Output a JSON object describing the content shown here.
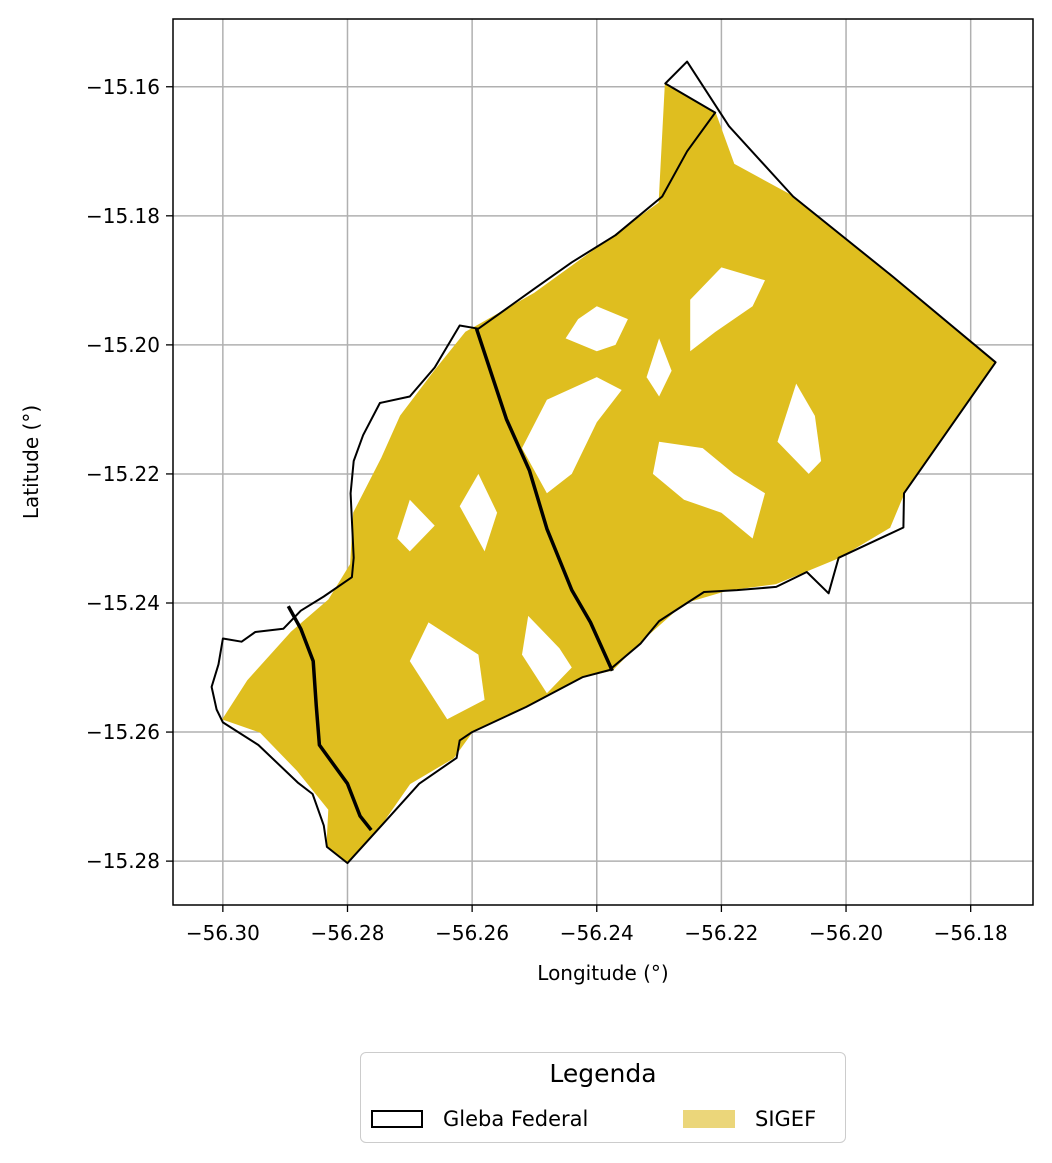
{
  "map": {
    "xlabel": "Longitude (°)",
    "ylabel": "Latitude (°)",
    "xlim": [
      -56.308,
      -56.17
    ],
    "ylim": [
      -15.2868,
      -15.1495
    ],
    "xticks": [
      {
        "value": -56.3,
        "label": "−56.30"
      },
      {
        "value": -56.28,
        "label": "−56.28"
      },
      {
        "value": -56.26,
        "label": "−56.26"
      },
      {
        "value": -56.24,
        "label": "−56.24"
      },
      {
        "value": -56.22,
        "label": "−56.22"
      },
      {
        "value": -56.2,
        "label": "−56.20"
      },
      {
        "value": -56.18,
        "label": "−56.18"
      }
    ],
    "yticks": [
      {
        "value": -15.16,
        "label": "−15.16"
      },
      {
        "value": -15.18,
        "label": "−15.18"
      },
      {
        "value": -15.2,
        "label": "−15.20"
      },
      {
        "value": -15.22,
        "label": "−15.22"
      },
      {
        "value": -15.24,
        "label": "−15.24"
      },
      {
        "value": -15.26,
        "label": "−15.26"
      },
      {
        "value": -15.28,
        "label": "−15.28"
      }
    ],
    "grid": true,
    "colors": {
      "sigef_fill": "#dfbe1f",
      "sigef_legend": "#ebd67a",
      "gleba_edge": "#000000",
      "grid": "#b0b0b0"
    },
    "gleba_outline": [
      [
        -56.2255,
        -15.1561
      ],
      [
        -56.2188,
        -15.1661
      ],
      [
        -56.2085,
        -15.177
      ],
      [
        -56.1924,
        -15.1895
      ],
      [
        -56.176,
        -15.2027
      ],
      [
        -56.1907,
        -15.223
      ],
      [
        -56.1908,
        -15.2283
      ],
      [
        -56.2012,
        -15.233
      ],
      [
        -56.2028,
        -15.2385
      ],
      [
        -56.2063,
        -15.2352
      ],
      [
        -56.2112,
        -15.2375
      ],
      [
        -56.2175,
        -15.238
      ],
      [
        -56.2228,
        -15.2383
      ],
      [
        -56.23,
        -15.2428
      ],
      [
        -56.233,
        -15.2463
      ],
      [
        -56.238,
        -15.2504
      ],
      [
        -56.2423,
        -15.2515
      ],
      [
        -56.2513,
        -15.2561
      ],
      [
        -56.26,
        -15.26
      ],
      [
        -56.262,
        -15.2613
      ],
      [
        -56.2625,
        -15.264
      ],
      [
        -56.2685,
        -15.268
      ],
      [
        -56.2752,
        -15.2752
      ],
      [
        -56.28,
        -15.2803
      ],
      [
        -56.2833,
        -15.2778
      ],
      [
        -56.2838,
        -15.2745
      ],
      [
        -56.2856,
        -15.2696
      ],
      [
        -56.288,
        -15.2678
      ],
      [
        -56.2943,
        -15.262
      ],
      [
        -56.3,
        -15.2585
      ],
      [
        -56.301,
        -15.2565
      ],
      [
        -56.3018,
        -15.253
      ],
      [
        -56.3007,
        -15.2495
      ],
      [
        -56.3,
        -15.2455
      ],
      [
        -56.297,
        -15.246
      ],
      [
        -56.2948,
        -15.2445
      ],
      [
        -56.2903,
        -15.244
      ],
      [
        -56.2875,
        -15.2412
      ],
      [
        -56.2838,
        -15.239
      ],
      [
        -56.2793,
        -15.236
      ],
      [
        -56.279,
        -15.233
      ],
      [
        -56.2795,
        -15.223
      ],
      [
        -56.279,
        -15.218
      ],
      [
        -56.2775,
        -15.214
      ],
      [
        -56.2748,
        -15.209
      ],
      [
        -56.27,
        -15.208
      ],
      [
        -56.266,
        -15.2035
      ],
      [
        -56.262,
        -15.197
      ],
      [
        -56.259,
        -15.1975
      ],
      [
        -56.25,
        -15.1913
      ],
      [
        -56.244,
        -15.1872
      ],
      [
        -56.237,
        -15.183
      ],
      [
        -56.2295,
        -15.177
      ],
      [
        -56.2255,
        -15.17
      ],
      [
        -56.221,
        -15.164
      ],
      [
        -56.229,
        -15.1595
      ]
    ],
    "gleba_inner_line_1": [
      [
        -56.2593,
        -15.1975
      ],
      [
        -56.2545,
        -15.2115
      ],
      [
        -56.2508,
        -15.2195
      ],
      [
        -56.248,
        -15.2285
      ],
      [
        -56.244,
        -15.238
      ],
      [
        -56.241,
        -15.243
      ],
      [
        -56.2375,
        -15.2505
      ]
    ],
    "gleba_inner_line_2": [
      [
        -56.2895,
        -15.2405
      ],
      [
        -56.2875,
        -15.244
      ],
      [
        -56.2855,
        -15.249
      ],
      [
        -56.285,
        -15.256
      ],
      [
        -56.2845,
        -15.262
      ],
      [
        -56.28,
        -15.268
      ],
      [
        -56.278,
        -15.273
      ],
      [
        -56.2762,
        -15.2752
      ]
    ],
    "sigef_parcels": [
      [
        [
          -56.229,
          -15.1597
        ],
        [
          -56.221,
          -15.164
        ],
        [
          -56.218,
          -15.172
        ],
        [
          -56.2085,
          -15.177
        ],
        [
          -56.1924,
          -15.1895
        ],
        [
          -56.176,
          -15.2027
        ],
        [
          -56.1907,
          -15.223
        ],
        [
          -56.193,
          -15.2283
        ],
        [
          -56.2012,
          -15.233
        ],
        [
          -56.2062,
          -15.235
        ],
        [
          -56.2112,
          -15.237
        ],
        [
          -56.219,
          -15.238
        ],
        [
          -56.226,
          -15.24
        ],
        [
          -56.233,
          -15.246
        ],
        [
          -56.2375,
          -15.2504
        ],
        [
          -56.2423,
          -15.2515
        ],
        [
          -56.251,
          -15.256
        ],
        [
          -56.26,
          -15.26
        ],
        [
          -56.263,
          -15.264
        ],
        [
          -56.27,
          -15.268
        ],
        [
          -56.2752,
          -15.2752
        ],
        [
          -56.28,
          -15.2803
        ],
        [
          -56.2833,
          -15.2778
        ],
        [
          -56.283,
          -15.272
        ],
        [
          -56.288,
          -15.266
        ],
        [
          -56.294,
          -15.26
        ],
        [
          -56.3,
          -15.258
        ],
        [
          -56.296,
          -15.252
        ],
        [
          -56.289,
          -15.2445
        ],
        [
          -56.283,
          -15.2395
        ],
        [
          -56.2795,
          -15.234
        ],
        [
          -56.279,
          -15.226
        ],
        [
          -56.2745,
          -15.2175
        ],
        [
          -56.2715,
          -15.211
        ],
        [
          -56.266,
          -15.204
        ],
        [
          -56.261,
          -15.198
        ],
        [
          -56.25,
          -15.192
        ],
        [
          -56.24,
          -15.185
        ],
        [
          -56.23,
          -15.178
        ]
      ]
    ],
    "white_gaps": [
      [
        [
          -56.248,
          -15.2085
        ],
        [
          -56.24,
          -15.205
        ],
        [
          -56.236,
          -15.207
        ],
        [
          -56.24,
          -15.212
        ],
        [
          -56.244,
          -15.22
        ],
        [
          -56.248,
          -15.223
        ],
        [
          -56.252,
          -15.216
        ]
      ],
      [
        [
          -56.259,
          -15.22
        ],
        [
          -56.256,
          -15.226
        ],
        [
          -56.258,
          -15.232
        ],
        [
          -56.262,
          -15.225
        ]
      ],
      [
        [
          -56.266,
          -15.228
        ],
        [
          -56.27,
          -15.232
        ],
        [
          -56.272,
          -15.23
        ],
        [
          -56.27,
          -15.224
        ]
      ],
      [
        [
          -56.267,
          -15.243
        ],
        [
          -56.259,
          -15.248
        ],
        [
          -56.258,
          -15.255
        ],
        [
          -56.264,
          -15.258
        ],
        [
          -56.27,
          -15.249
        ]
      ],
      [
        [
          -56.251,
          -15.242
        ],
        [
          -56.246,
          -15.247
        ],
        [
          -56.244,
          -15.25
        ],
        [
          -56.248,
          -15.254
        ],
        [
          -56.252,
          -15.248
        ]
      ],
      [
        [
          -56.23,
          -15.215
        ],
        [
          -56.223,
          -15.216
        ],
        [
          -56.218,
          -15.22
        ],
        [
          -56.213,
          -15.223
        ],
        [
          -56.215,
          -15.23
        ],
        [
          -56.22,
          -15.226
        ],
        [
          -56.226,
          -15.224
        ],
        [
          -56.231,
          -15.22
        ]
      ],
      [
        [
          -56.245,
          -15.199
        ],
        [
          -56.24,
          -15.201
        ],
        [
          -56.237,
          -15.2
        ],
        [
          -56.235,
          -15.196
        ],
        [
          -56.24,
          -15.194
        ],
        [
          -56.243,
          -15.196
        ]
      ],
      [
        [
          -56.225,
          -15.201
        ],
        [
          -56.221,
          -15.198
        ],
        [
          -56.215,
          -15.194
        ],
        [
          -56.213,
          -15.19
        ],
        [
          -56.22,
          -15.188
        ],
        [
          -56.225,
          -15.193
        ]
      ],
      [
        [
          -56.208,
          -15.206
        ],
        [
          -56.205,
          -15.211
        ],
        [
          -56.204,
          -15.218
        ],
        [
          -56.206,
          -15.22
        ],
        [
          -56.211,
          -15.215
        ]
      ],
      [
        [
          -56.23,
          -15.199
        ],
        [
          -56.232,
          -15.205
        ],
        [
          -56.23,
          -15.208
        ],
        [
          -56.228,
          -15.204
        ]
      ]
    ]
  },
  "legend": {
    "title": "Legenda",
    "gleba_label": "Gleba Federal",
    "sigef_label": "SIGEF"
  }
}
